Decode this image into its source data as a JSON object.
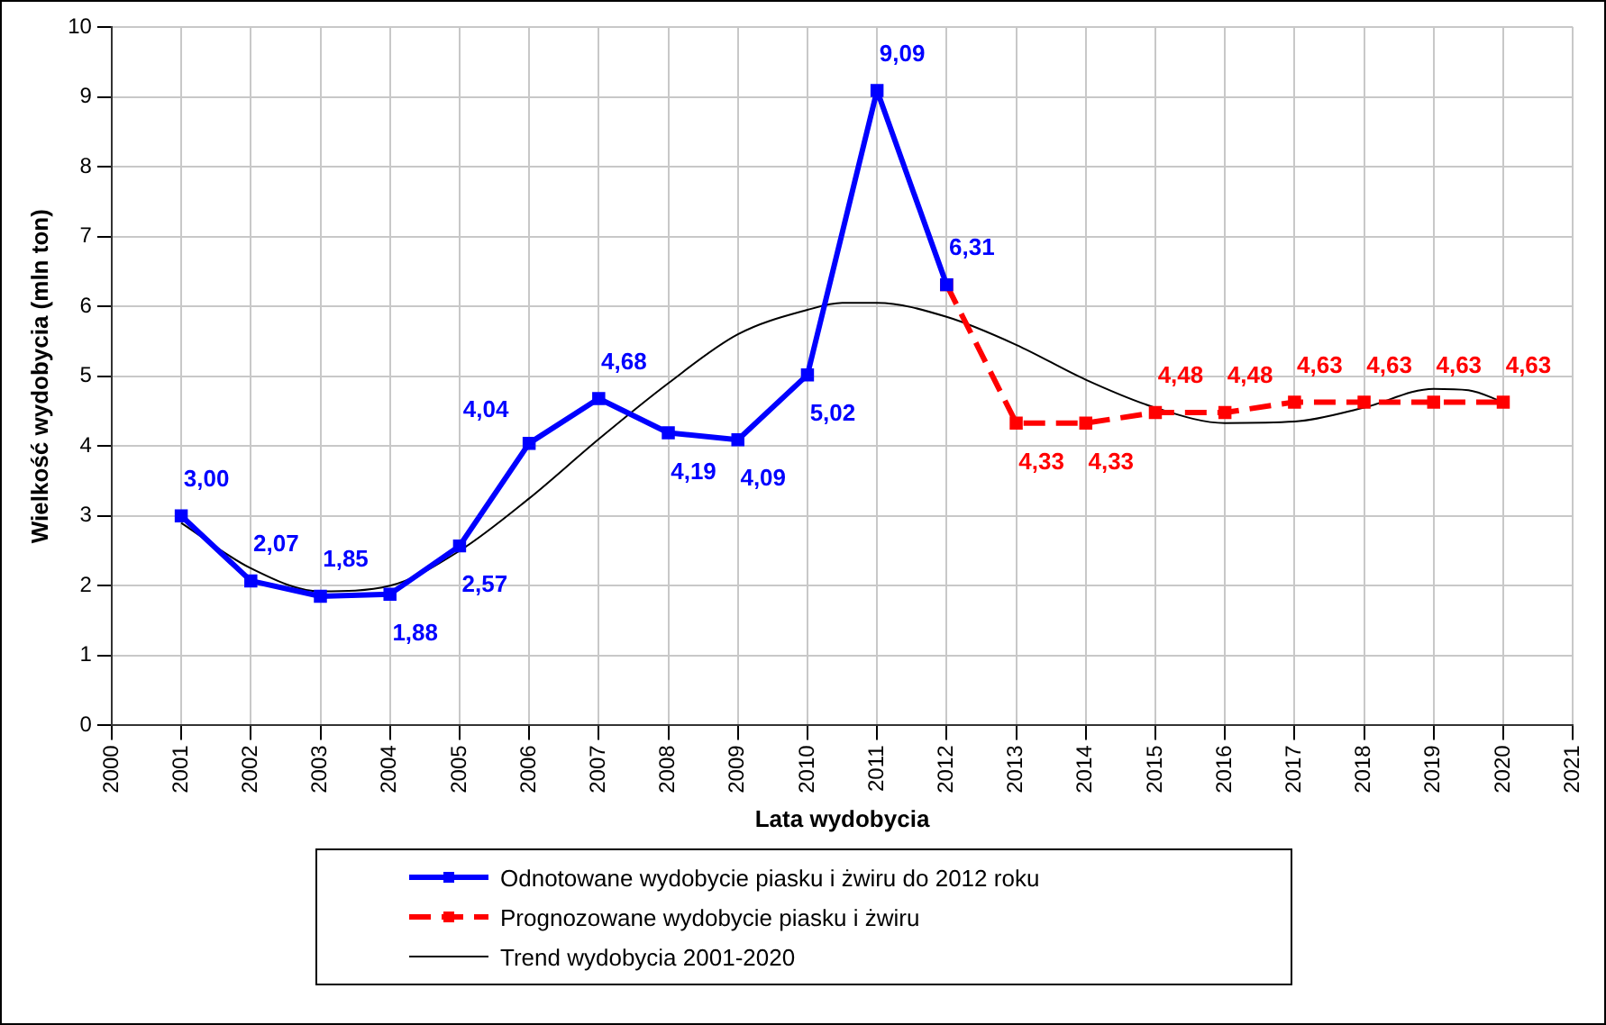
{
  "chart_data": {
    "type": "line",
    "xlabel": "Lata wydobycia",
    "ylabel": "Wielkość wydobycia (mln ton)",
    "xlim": [
      2000,
      2021
    ],
    "xticks": [
      2000,
      2001,
      2002,
      2003,
      2004,
      2005,
      2006,
      2007,
      2008,
      2009,
      2010,
      2011,
      2012,
      2013,
      2014,
      2015,
      2016,
      2017,
      2018,
      2019,
      2020,
      2021
    ],
    "ylim": [
      0,
      10
    ],
    "yticks": [
      0,
      1,
      2,
      3,
      4,
      5,
      6,
      7,
      8,
      9,
      10
    ],
    "grid": true,
    "legend": "bottom",
    "series": [
      {
        "name": "Odnotowane wydobycie piasku i żwiru do 2012 roku",
        "color": "#0000ff",
        "marker": "square",
        "line_style": "solid",
        "x": [
          2001,
          2002,
          2003,
          2004,
          2005,
          2006,
          2007,
          2008,
          2009,
          2010,
          2011,
          2012
        ],
        "values": [
          3.0,
          2.07,
          1.85,
          1.88,
          2.57,
          4.04,
          4.68,
          4.19,
          4.09,
          5.02,
          9.09,
          6.31
        ],
        "value_labels": [
          "3,00",
          "2,07",
          "1,85",
          "1,88",
          "2,57",
          "4,04",
          "4,68",
          "4,19",
          "4,09",
          "5,02",
          "9,09",
          "6,31"
        ]
      },
      {
        "name": "Prognozowane wydobycie piasku i żwiru",
        "color": "#ff0000",
        "marker": "square",
        "line_style": "dashed",
        "x": [
          2012,
          2013,
          2014,
          2015,
          2016,
          2017,
          2018,
          2019,
          2020
        ],
        "values": [
          6.31,
          4.33,
          4.33,
          4.48,
          4.48,
          4.63,
          4.63,
          4.63,
          4.63
        ],
        "value_labels": [
          null,
          "4,33",
          "4,33",
          "4,48",
          "4,48",
          "4,63",
          "4,63",
          "4,63",
          "4,63"
        ]
      },
      {
        "name": "Trend wydobycia 2001-2020",
        "color": "#000000",
        "marker": "none",
        "line_style": "solid",
        "x": [
          2001,
          2002,
          2003,
          2004,
          2005,
          2006,
          2007,
          2008,
          2009,
          2010,
          2010.5,
          2011,
          2012,
          2013,
          2014,
          2015,
          2016,
          2017,
          2018,
          2019,
          2019.5,
          2020
        ],
        "values": [
          2.9,
          2.25,
          1.92,
          2.0,
          2.5,
          3.25,
          4.1,
          4.9,
          5.6,
          5.95,
          6.05,
          6.05,
          5.85,
          5.45,
          4.95,
          4.55,
          4.33,
          4.35,
          4.55,
          4.82,
          4.8,
          4.63
        ]
      }
    ]
  }
}
